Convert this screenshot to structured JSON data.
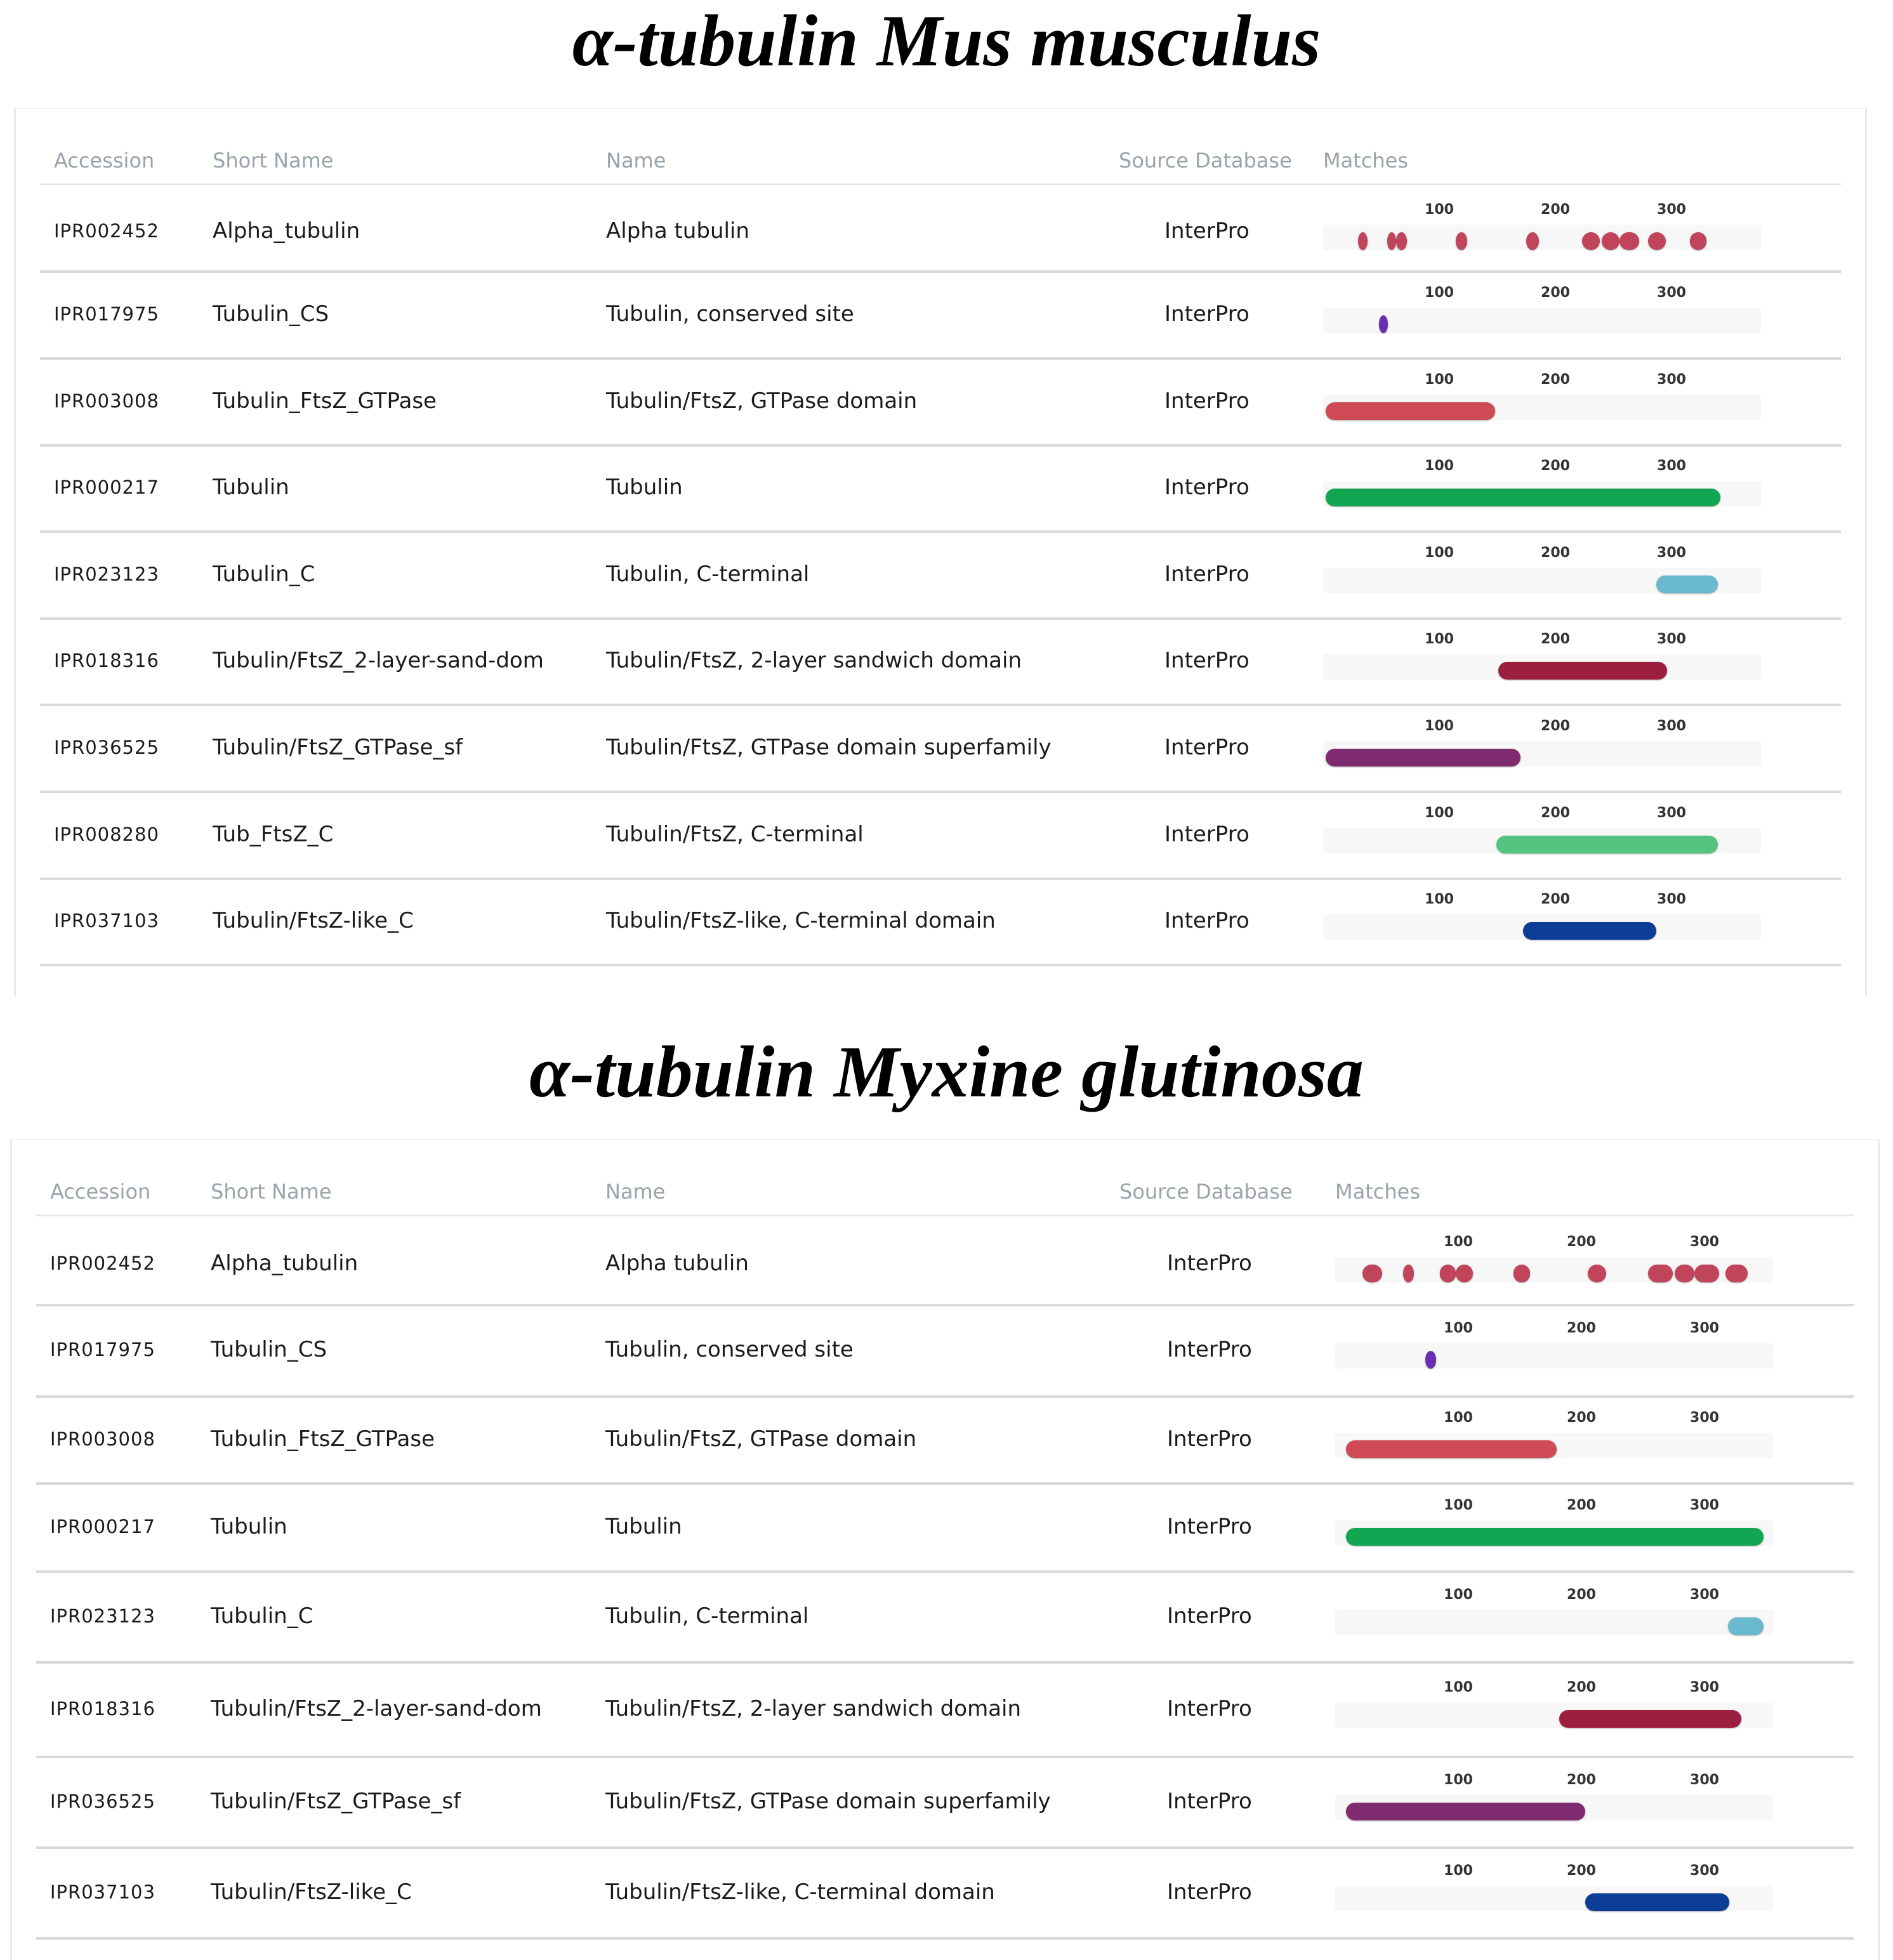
{
  "colors": {
    "alpha_tubulin": "#c0445a",
    "tubulin_cs": "#6a2fb0",
    "gtpase_domain": "#cf4a55",
    "tubulin": "#13a652",
    "tubulin_c": "#6bb9cf",
    "sandwich": "#9c1f40",
    "gtpase_sf": "#7e2b6f",
    "tub_ftsz_c": "#52c47f",
    "ftsz_like_c": "#0b3c96"
  },
  "sections": [
    {
      "title": "α-tubulin Mus musculus",
      "headers": {
        "accession": "Accession",
        "short_name": "Short Name",
        "name": "Name",
        "source": "Source Database",
        "matches": "Matches"
      },
      "ticks": [
        "100",
        "200",
        "300"
      ],
      "rows": [
        {
          "accession": "IPR002452",
          "short_name": "Alpha_tubulin",
          "name": "Alpha tubulin",
          "source": "InterPro",
          "color_key": "alpha_tubulin",
          "matches": [
            [
              30,
              38
            ],
            [
              55,
              62
            ],
            [
              63,
              72
            ],
            [
              114,
              124
            ],
            [
              175,
              186
            ],
            [
              223,
              238
            ],
            [
              240,
              255
            ],
            [
              255,
              272
            ],
            [
              280,
              295
            ],
            [
              316,
              330
            ]
          ]
        },
        {
          "accession": "IPR017975",
          "short_name": "Tubulin_CS",
          "name": "Tubulin, conserved site",
          "source": "InterPro",
          "color_key": "tubulin_cs",
          "matches": [
            [
              48,
              56
            ]
          ]
        },
        {
          "accession": "IPR003008",
          "short_name": "Tubulin_FtsZ_GTPase",
          "name": "Tubulin/FtsZ, GTPase domain",
          "source": "InterPro",
          "color_key": "gtpase_domain",
          "matches": [
            [
              2,
              148
            ]
          ]
        },
        {
          "accession": "IPR000217",
          "short_name": "Tubulin",
          "name": "Tubulin",
          "source": "InterPro",
          "color_key": "tubulin",
          "matches": [
            [
              2,
              342
            ]
          ]
        },
        {
          "accession": "IPR023123",
          "short_name": "Tubulin_C",
          "name": "Tubulin, C-terminal",
          "source": "InterPro",
          "color_key": "tubulin_c",
          "matches": [
            [
              287,
              340
            ]
          ]
        },
        {
          "accession": "IPR018316",
          "short_name": "Tubulin/FtsZ_2-layer-sand-dom",
          "name": "Tubulin/FtsZ, 2-layer sandwich domain",
          "source": "InterPro",
          "color_key": "sandwich",
          "matches": [
            [
              151,
              296
            ]
          ]
        },
        {
          "accession": "IPR036525",
          "short_name": "Tubulin/FtsZ_GTPase_sf",
          "name": "Tubulin/FtsZ, GTPase domain superfamily",
          "source": "InterPro",
          "color_key": "gtpase_sf",
          "matches": [
            [
              2,
              170
            ]
          ]
        },
        {
          "accession": "IPR008280",
          "short_name": "Tub_FtsZ_C",
          "name": "Tubulin/FtsZ, C-terminal",
          "source": "InterPro",
          "color_key": "tub_ftsz_c",
          "matches": [
            [
              149,
              340
            ]
          ]
        },
        {
          "accession": "IPR037103",
          "short_name": "Tubulin/FtsZ-like_C",
          "name": "Tubulin/FtsZ-like, C-terminal domain",
          "source": "InterPro",
          "color_key": "ftsz_like_c",
          "matches": [
            [
              172,
              287
            ]
          ]
        }
      ]
    },
    {
      "title": "α-tubulin Myxine glutinosa",
      "headers": {
        "accession": "Accession",
        "short_name": "Short Name",
        "name": "Name",
        "source": "Source Database",
        "matches": "Matches"
      },
      "ticks": [
        "100",
        "200",
        "300"
      ],
      "rows": [
        {
          "accession": "IPR002452",
          "short_name": "Alpha_tubulin",
          "name": "Alpha tubulin",
          "source": "InterPro",
          "color_key": "alpha_tubulin",
          "matches": [
            [
              22,
              38
            ],
            [
              55,
              64
            ],
            [
              85,
              98
            ],
            [
              98,
              112
            ],
            [
              145,
              158
            ],
            [
              205,
              220
            ],
            [
              254,
              274
            ],
            [
              276,
              292
            ],
            [
              292,
              312
            ],
            [
              317,
              335
            ]
          ]
        },
        {
          "accession": "IPR017975",
          "short_name": "Tubulin_CS",
          "name": "Tubulin, conserved site",
          "source": "InterPro",
          "color_key": "tubulin_cs",
          "matches": [
            [
              73,
              82
            ]
          ]
        },
        {
          "accession": "IPR003008",
          "short_name": "Tubulin_FtsZ_GTPase",
          "name": "Tubulin/FtsZ, GTPase domain",
          "source": "InterPro",
          "color_key": "gtpase_domain",
          "matches": [
            [
              9,
              180
            ]
          ]
        },
        {
          "accession": "IPR000217",
          "short_name": "Tubulin",
          "name": "Tubulin",
          "source": "InterPro",
          "color_key": "tubulin",
          "matches": [
            [
              9,
              348
            ]
          ]
        },
        {
          "accession": "IPR023123",
          "short_name": "Tubulin_C",
          "name": "Tubulin, C-terminal",
          "source": "InterPro",
          "color_key": "tubulin_c",
          "matches": [
            [
              319,
              348
            ]
          ]
        },
        {
          "accession": "IPR018316",
          "short_name": "Tubulin/FtsZ_2-layer-sand-dom",
          "name": "Tubulin/FtsZ, 2-layer sandwich domain",
          "source": "InterPro",
          "color_key": "sandwich",
          "matches": [
            [
              182,
              330
            ]
          ]
        },
        {
          "accession": "IPR036525",
          "short_name": "Tubulin/FtsZ_GTPase_sf",
          "name": "Tubulin/FtsZ, GTPase domain superfamily",
          "source": "InterPro",
          "color_key": "gtpase_sf",
          "matches": [
            [
              9,
              203
            ]
          ]
        },
        {
          "accession": "IPR037103",
          "short_name": "Tubulin/FtsZ-like_C",
          "name": "Tubulin/FtsZ-like, C-terminal domain",
          "source": "InterPro",
          "color_key": "ftsz_like_c",
          "matches": [
            [
              203,
              320
            ]
          ]
        }
      ]
    }
  ]
}
